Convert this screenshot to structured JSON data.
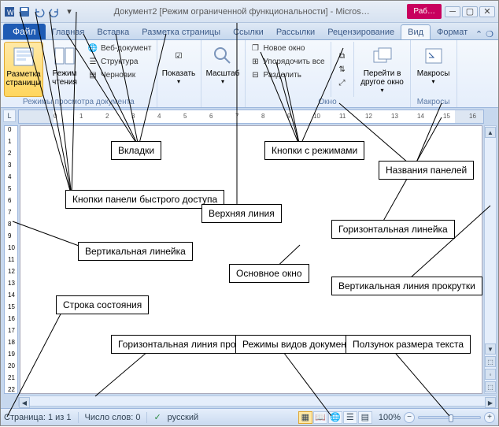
{
  "title_bar": {
    "title": "Документ2 [Режим ограниченной функциональности] - Micros…",
    "work_tab": "Раб…"
  },
  "ribbon_tabs": {
    "file": "Файл",
    "items": [
      "Главная",
      "Вставка",
      "Разметка страницы",
      "Ссылки",
      "Рассылки",
      "Рецензирование",
      "Вид",
      "Формат"
    ],
    "active_index": 6
  },
  "ribbon": {
    "group_views": {
      "label": "Режимы просмотра документа",
      "page_layout": "Разметка страницы",
      "reading": "Режим чтения",
      "web": "Веб-документ",
      "outline": "Структура",
      "draft": "Черновик"
    },
    "group_show": {
      "label": "Показать"
    },
    "group_zoom": {
      "label": "Масштаб"
    },
    "group_window": {
      "label": "Окно",
      "new_window": "Новое окно",
      "arrange_all": "Упорядочить все",
      "split": "Разделить",
      "switch": "Перейти в другое окно"
    },
    "group_macros": {
      "label": "Макросы",
      "btn": "Макросы"
    }
  },
  "status": {
    "page": "Страница: 1 из 1",
    "words": "Число слов: 0",
    "lang": "русский",
    "zoom_pct": "100%"
  },
  "annotations": {
    "tabs": "Вкладки",
    "mode_buttons": "Кнопки с режимами",
    "panel_names": "Названия панелей",
    "qat_buttons": "Кнопки панели быстрого доступа",
    "top_ruler": "Верхняя линия",
    "h_ruler": "Горизонтальная линейка",
    "v_ruler": "Вертикальная линейка",
    "main_window": "Основное окно",
    "v_scroll": "Вертикальная линия прокрутки",
    "status_line": "Строка состояния",
    "h_scroll": "Горизонтальная линия прокрутки",
    "view_modes": "Режимы видов документа",
    "zoom_slider": "Ползунок размера текста"
  },
  "colors": {
    "accent": "#1e5bb4",
    "work_tab": "#c8005e",
    "highlight": "#ffd65e"
  }
}
